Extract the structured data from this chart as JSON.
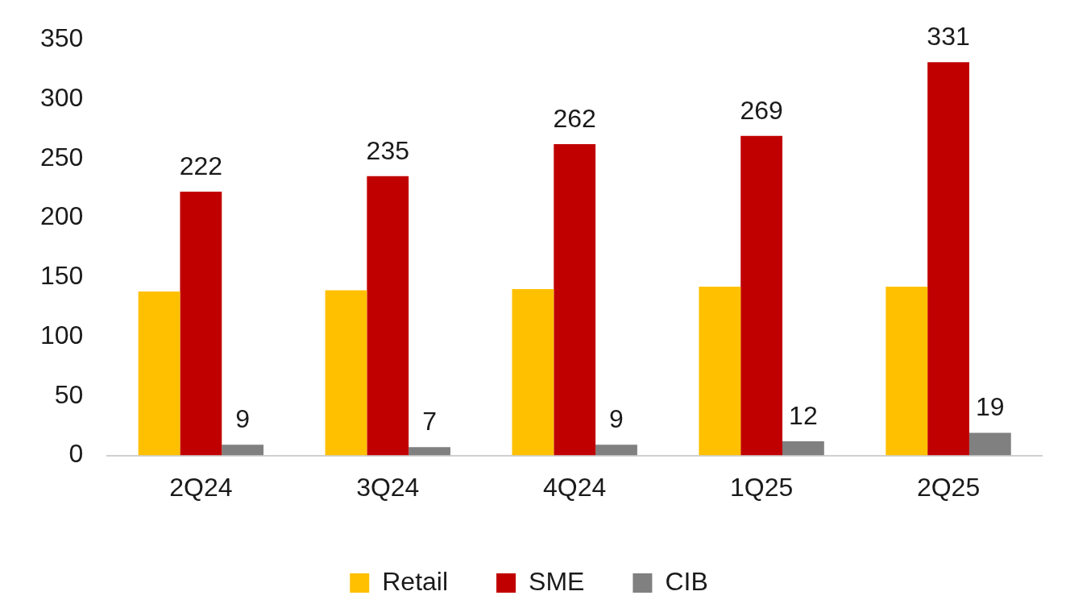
{
  "chart_data": {
    "type": "bar",
    "categories": [
      "2Q24",
      "3Q24",
      "4Q24",
      "1Q25",
      "2Q25"
    ],
    "series": [
      {
        "name": "Retail",
        "color": "#ffc000",
        "values": [
          138,
          139,
          140,
          142,
          142
        ]
      },
      {
        "name": "SME",
        "color": "#c00000",
        "values": [
          222,
          235,
          262,
          269,
          331
        ],
        "value_labels": [
          "222",
          "235",
          "262",
          "269",
          "331"
        ]
      },
      {
        "name": "CIB",
        "color": "#808080",
        "values": [
          9,
          7,
          9,
          12,
          19
        ],
        "value_labels": [
          "9",
          "7",
          "9",
          "12",
          "19"
        ]
      }
    ],
    "ylim": [
      0,
      350
    ],
    "yticks": [
      0,
      50,
      100,
      150,
      200,
      250,
      300,
      350
    ],
    "grid": false,
    "legend": "bottom"
  }
}
